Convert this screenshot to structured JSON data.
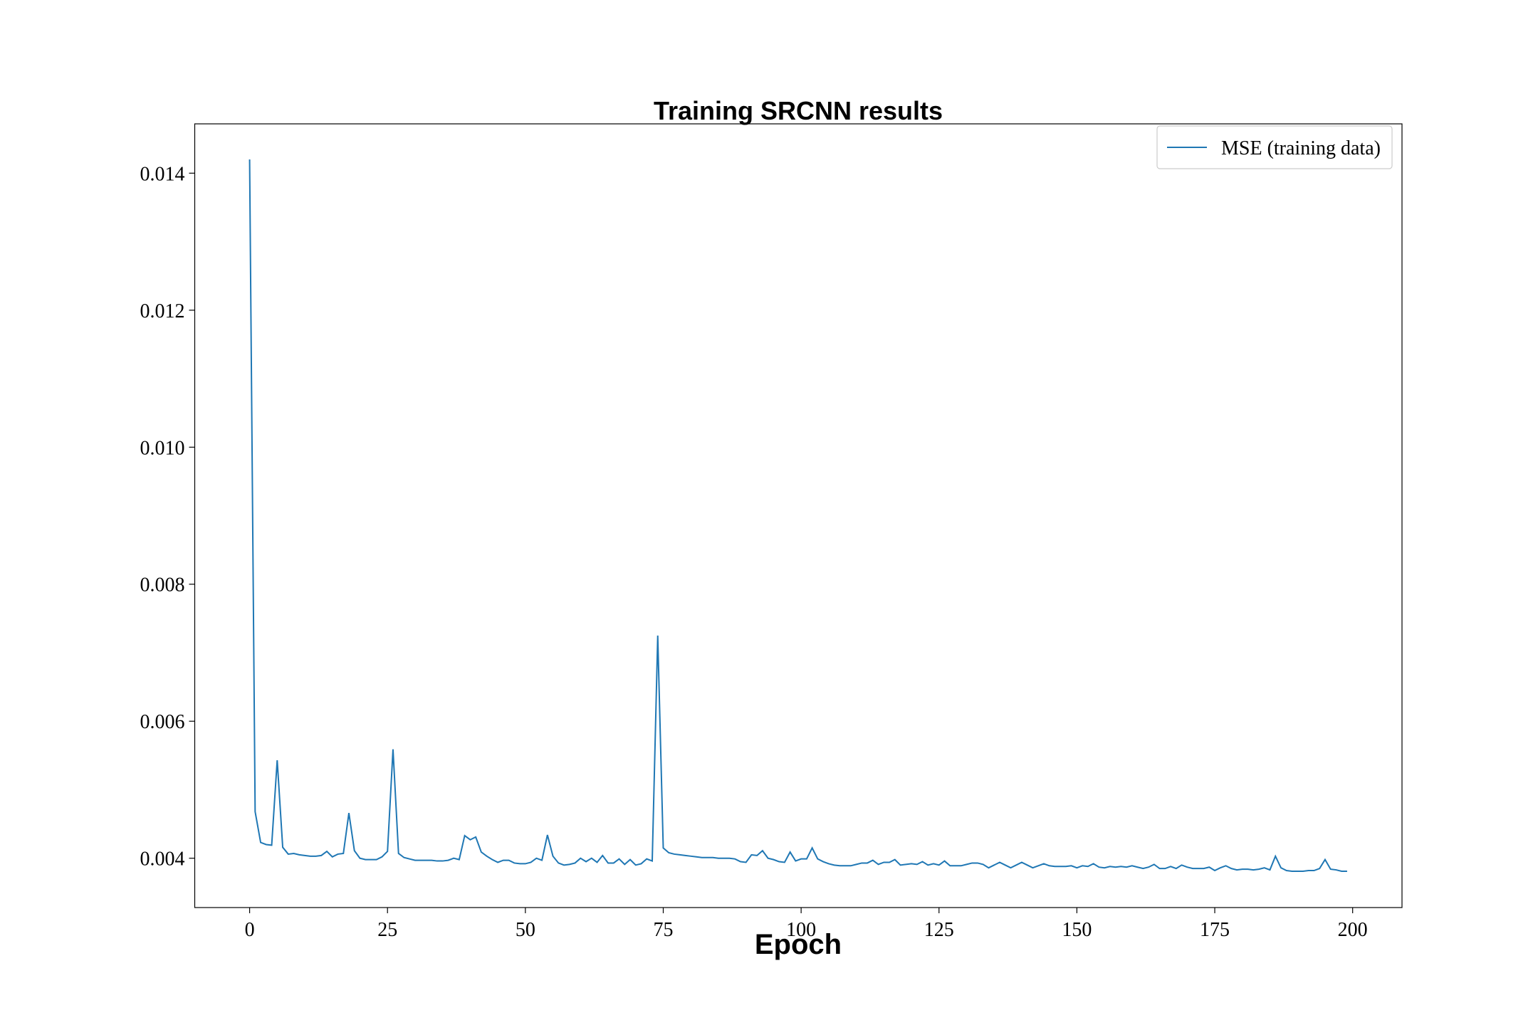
{
  "chart_data": {
    "type": "line",
    "title": "Training SRCNN results",
    "xlabel": "Epoch",
    "x": [
      0,
      1,
      2,
      3,
      4,
      5,
      6,
      7,
      8,
      9,
      10,
      11,
      12,
      13,
      14,
      15,
      16,
      17,
      18,
      19,
      20,
      21,
      22,
      23,
      24,
      25,
      26,
      27,
      28,
      29,
      30,
      31,
      32,
      33,
      34,
      35,
      36,
      37,
      38,
      39,
      40,
      41,
      42,
      43,
      44,
      45,
      46,
      47,
      48,
      49,
      50,
      51,
      52,
      53,
      54,
      55,
      56,
      57,
      58,
      59,
      60,
      61,
      62,
      63,
      64,
      65,
      66,
      67,
      68,
      69,
      70,
      71,
      72,
      73,
      74,
      75,
      76,
      77,
      78,
      79,
      80,
      81,
      82,
      83,
      84,
      85,
      86,
      87,
      88,
      89,
      90,
      91,
      92,
      93,
      94,
      95,
      96,
      97,
      98,
      99,
      100,
      101,
      102,
      103,
      104,
      105,
      106,
      107,
      108,
      109,
      110,
      111,
      112,
      113,
      114,
      115,
      116,
      117,
      118,
      119,
      120,
      121,
      122,
      123,
      124,
      125,
      126,
      127,
      128,
      129,
      130,
      131,
      132,
      133,
      134,
      135,
      136,
      137,
      138,
      139,
      140,
      141,
      142,
      143,
      144,
      145,
      146,
      147,
      148,
      149,
      150,
      151,
      152,
      153,
      154,
      155,
      156,
      157,
      158,
      159,
      160,
      161,
      162,
      163,
      164,
      165,
      166,
      167,
      168,
      169,
      170,
      171,
      172,
      173,
      174,
      175,
      176,
      177,
      178,
      179,
      180,
      181,
      182,
      183,
      184,
      185,
      186,
      187,
      188,
      189,
      190,
      191,
      192,
      193,
      194,
      195,
      196,
      197,
      198,
      199
    ],
    "series": [
      {
        "name": "MSE (training data)",
        "color": "#1f77b4",
        "values": [
          0.0142,
          0.00468,
          0.00423,
          0.0042,
          0.00419,
          0.00543,
          0.00416,
          0.00406,
          0.00407,
          0.00405,
          0.00404,
          0.00403,
          0.00403,
          0.00404,
          0.0041,
          0.00402,
          0.00406,
          0.00407,
          0.00466,
          0.00411,
          0.004,
          0.00398,
          0.00398,
          0.00398,
          0.00402,
          0.0041,
          0.00559,
          0.00407,
          0.00401,
          0.00399,
          0.00397,
          0.00397,
          0.00397,
          0.00397,
          0.00396,
          0.00396,
          0.00397,
          0.004,
          0.00398,
          0.00433,
          0.00427,
          0.00431,
          0.00409,
          0.00403,
          0.00398,
          0.00394,
          0.00397,
          0.00397,
          0.00393,
          0.00392,
          0.00392,
          0.00394,
          0.004,
          0.00397,
          0.00434,
          0.00403,
          0.00393,
          0.0039,
          0.00391,
          0.00393,
          0.004,
          0.00395,
          0.004,
          0.00394,
          0.00404,
          0.00393,
          0.00393,
          0.00399,
          0.00391,
          0.00398,
          0.0039,
          0.00392,
          0.00399,
          0.00396,
          0.00725,
          0.00415,
          0.00408,
          0.00406,
          0.00405,
          0.00404,
          0.00403,
          0.00402,
          0.00401,
          0.00401,
          0.00401,
          0.004,
          0.004,
          0.004,
          0.00399,
          0.00395,
          0.00394,
          0.00405,
          0.00404,
          0.00411,
          0.004,
          0.00398,
          0.00395,
          0.00394,
          0.00409,
          0.00396,
          0.00399,
          0.00399,
          0.00415,
          0.00399,
          0.00395,
          0.00392,
          0.0039,
          0.00389,
          0.00389,
          0.00389,
          0.00391,
          0.00393,
          0.00393,
          0.00397,
          0.00391,
          0.00394,
          0.00394,
          0.00398,
          0.0039,
          0.00391,
          0.00392,
          0.00391,
          0.00395,
          0.0039,
          0.00392,
          0.0039,
          0.00396,
          0.00389,
          0.00389,
          0.00389,
          0.00391,
          0.00393,
          0.00393,
          0.00391,
          0.00386,
          0.0039,
          0.00394,
          0.0039,
          0.00386,
          0.0039,
          0.00394,
          0.0039,
          0.00386,
          0.00389,
          0.00392,
          0.00389,
          0.00388,
          0.00388,
          0.00388,
          0.00389,
          0.00386,
          0.00389,
          0.00388,
          0.00392,
          0.00387,
          0.00386,
          0.00388,
          0.00387,
          0.00388,
          0.00387,
          0.00389,
          0.00387,
          0.00385,
          0.00387,
          0.00391,
          0.00385,
          0.00385,
          0.00388,
          0.00385,
          0.0039,
          0.00387,
          0.00385,
          0.00385,
          0.00385,
          0.00387,
          0.00382,
          0.00386,
          0.00389,
          0.00385,
          0.00383,
          0.00384,
          0.00384,
          0.00383,
          0.00384,
          0.00386,
          0.00383,
          0.00403,
          0.00386,
          0.00382,
          0.00381,
          0.00381,
          0.00381,
          0.00382,
          0.00382,
          0.00385,
          0.00398,
          0.00384,
          0.00383,
          0.00381,
          0.00381
        ]
      }
    ],
    "xlim": [
      -9.95,
      208.95
    ],
    "xticks": [
      0,
      25,
      50,
      75,
      100,
      125,
      150,
      175,
      200
    ],
    "ylim": [
      0.00328,
      0.01472
    ],
    "yticks": [
      0.004,
      0.006,
      0.008,
      {
        "value": 0.01,
        "label": "0.010"
      },
      0.012,
      0.014
    ],
    "legend": "upper right"
  }
}
